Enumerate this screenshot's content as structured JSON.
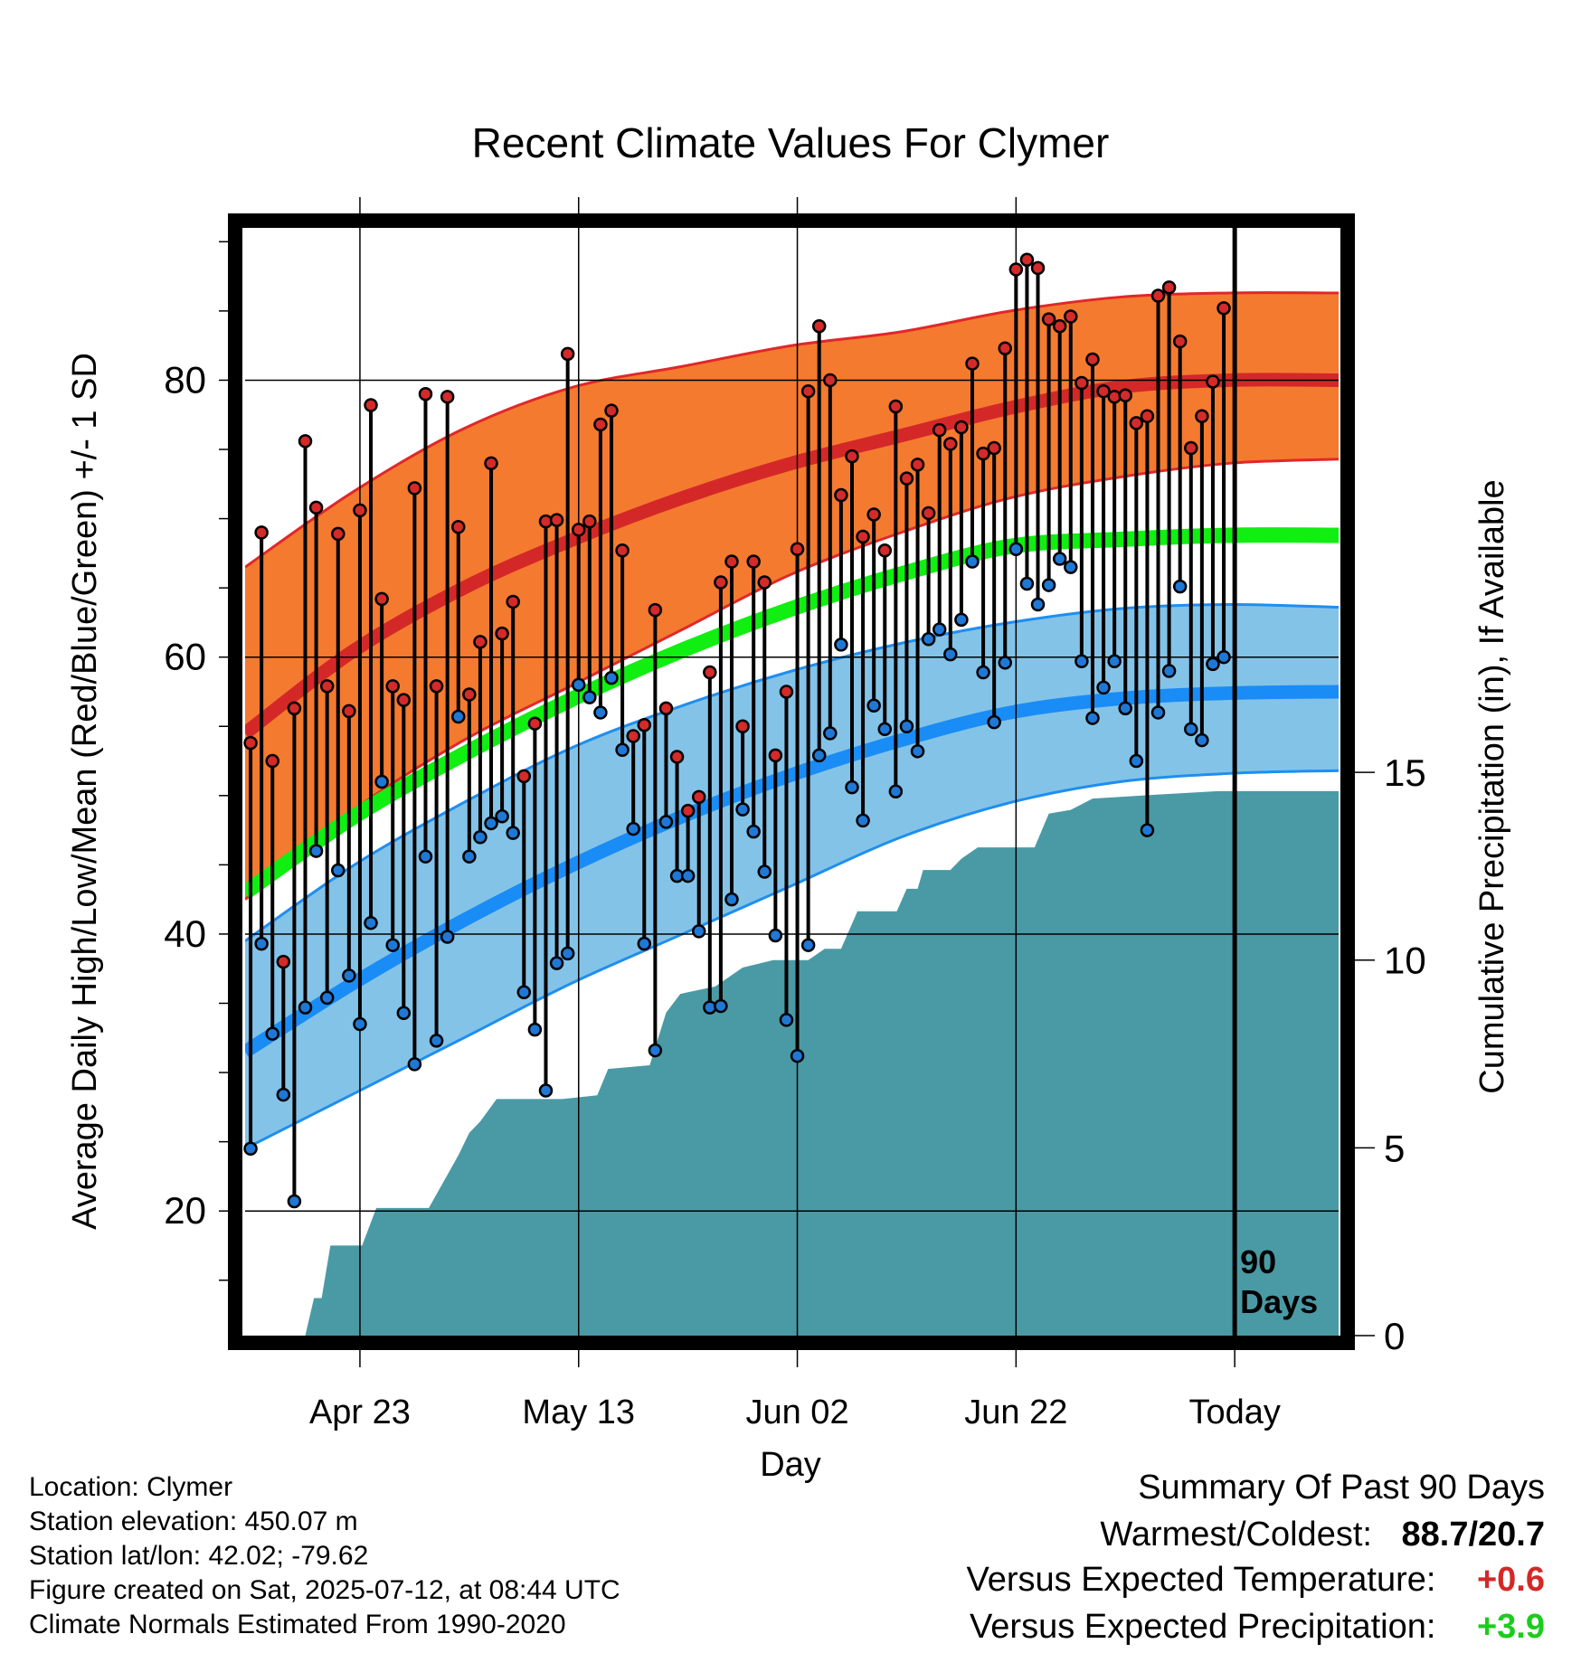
{
  "chart_data": {
    "type": "line",
    "title": "Recent Climate Values For Clymer",
    "xlabel": "Day",
    "ylabel_left": "Average Daily High/Low/Mean (Red/Blue/Green) +/- 1 SD",
    "ylabel_right": "Cumulative Precipitation (in), If Available",
    "ylim": [
      11,
      91
    ],
    "y_ticks": [
      20,
      40,
      60,
      80
    ],
    "precip_ylim": [
      0,
      29.5
    ],
    "precip_ticks": [
      0,
      5,
      10,
      15
    ],
    "x_range": [
      0,
      100
    ],
    "x_ticks": [
      {
        "day": 10.5,
        "label": "Apr 23"
      },
      {
        "day": 30.5,
        "label": "May 13"
      },
      {
        "day": 50.5,
        "label": "Jun 02"
      },
      {
        "day": 70.5,
        "label": "Jun 22"
      },
      {
        "day": 90.5,
        "label": "Today"
      }
    ],
    "today_day": 90.5,
    "today_label": [
      "90",
      "Days"
    ],
    "grid": true,
    "colors": {
      "high_band": "#f47a30",
      "high_edge": "#e0282a",
      "high_mean": "#d42828",
      "low_band": "#84c3e8",
      "low_edge": "#1f8ef0",
      "low_mean": "#1a8cf5",
      "mean": "#11ee11",
      "precip": "#4a9aa5",
      "high_dot": "#d42a2a",
      "low_dot": "#1f78d6"
    },
    "normals": {
      "days": [
        0,
        10,
        20,
        30,
        40,
        50,
        60,
        70,
        80,
        90,
        100
      ],
      "high_mean": [
        54.5,
        60.5,
        65.0,
        68.5,
        71.5,
        74.0,
        76.0,
        78.0,
        79.5,
        80.0,
        80.0
      ],
      "high_upper": [
        66.5,
        72.0,
        76.5,
        79.5,
        81.0,
        82.5,
        83.5,
        85.0,
        86.0,
        86.3,
        86.3
      ],
      "high_lower": [
        42.5,
        49.0,
        54.0,
        58.0,
        62.0,
        66.0,
        69.0,
        71.5,
        73.0,
        74.0,
        74.3
      ],
      "mean": [
        43.0,
        48.5,
        53.0,
        57.0,
        60.5,
        63.5,
        66.0,
        68.0,
        68.5,
        68.8,
        68.8
      ],
      "low_mean": [
        31.5,
        36.5,
        41.0,
        45.0,
        48.5,
        51.5,
        54.0,
        56.0,
        57.0,
        57.4,
        57.5
      ],
      "low_upper": [
        39.5,
        45.0,
        49.5,
        53.5,
        56.5,
        59.0,
        61.0,
        62.5,
        63.5,
        63.8,
        63.6
      ],
      "low_lower": [
        24.5,
        28.5,
        32.5,
        36.5,
        40.0,
        43.5,
        47.0,
        49.5,
        51.0,
        51.6,
        51.8
      ]
    },
    "daily": [
      {
        "day": 0,
        "high": 53.8,
        "low": 24.5
      },
      {
        "day": 1,
        "high": 69.0,
        "low": 39.3
      },
      {
        "day": 2,
        "high": 52.5,
        "low": 32.8
      },
      {
        "day": 3,
        "high": 38.0,
        "low": 28.4
      },
      {
        "day": 4,
        "high": 56.3,
        "low": 20.7
      },
      {
        "day": 5,
        "high": 75.6,
        "low": 34.7
      },
      {
        "day": 6,
        "high": 70.8,
        "low": 46.0
      },
      {
        "day": 7,
        "high": 57.9,
        "low": 35.4
      },
      {
        "day": 8,
        "high": 68.9,
        "low": 44.6
      },
      {
        "day": 9,
        "high": 56.1,
        "low": 37.0
      },
      {
        "day": 10,
        "high": 70.6,
        "low": 33.5
      },
      {
        "day": 11,
        "high": 78.2,
        "low": 40.8
      },
      {
        "day": 12,
        "high": 64.2,
        "low": 51.0
      },
      {
        "day": 13,
        "high": 57.9,
        "low": 39.2
      },
      {
        "day": 14,
        "high": 56.9,
        "low": 34.3
      },
      {
        "day": 15,
        "high": 72.2,
        "low": 30.6
      },
      {
        "day": 16,
        "high": 79.0,
        "low": 45.6
      },
      {
        "day": 17,
        "high": 57.9,
        "low": 32.3
      },
      {
        "day": 18,
        "high": 78.8,
        "low": 39.8
      },
      {
        "day": 19,
        "high": 69.4,
        "low": 55.7
      },
      {
        "day": 20,
        "high": 57.3,
        "low": 45.6
      },
      {
        "day": 21,
        "high": 61.1,
        "low": 47.0
      },
      {
        "day": 22,
        "high": 74.0,
        "low": 48.0
      },
      {
        "day": 23,
        "high": 61.7,
        "low": 48.5
      },
      {
        "day": 24,
        "high": 64.0,
        "low": 47.3
      },
      {
        "day": 25,
        "high": 51.4,
        "low": 35.8
      },
      {
        "day": 26,
        "high": 55.2,
        "low": 33.1
      },
      {
        "day": 27,
        "high": 69.8,
        "low": 28.7
      },
      {
        "day": 28,
        "high": 69.9,
        "low": 37.9
      },
      {
        "day": 29,
        "high": 81.9,
        "low": 38.6
      },
      {
        "day": 30,
        "high": 69.2,
        "low": 58.0
      },
      {
        "day": 31,
        "high": 69.8,
        "low": 57.1
      },
      {
        "day": 32,
        "high": 76.8,
        "low": 56.0
      },
      {
        "day": 33,
        "high": 77.8,
        "low": 58.5
      },
      {
        "day": 34,
        "high": 67.7,
        "low": 53.3
      },
      {
        "day": 35,
        "high": 54.3,
        "low": 47.6
      },
      {
        "day": 36,
        "high": 55.1,
        "low": 39.3
      },
      {
        "day": 37,
        "high": 63.4,
        "low": 31.6
      },
      {
        "day": 38,
        "high": 56.3,
        "low": 48.1
      },
      {
        "day": 39,
        "high": 52.8,
        "low": 44.2
      },
      {
        "day": 40,
        "high": 48.9,
        "low": 44.2
      },
      {
        "day": 41,
        "high": 49.9,
        "low": 40.2
      },
      {
        "day": 42,
        "high": 58.9,
        "low": 34.7
      },
      {
        "day": 43,
        "high": 65.4,
        "low": 34.8
      },
      {
        "day": 44,
        "high": 66.9,
        "low": 42.5
      },
      {
        "day": 45,
        "high": 55.0,
        "low": 49.0
      },
      {
        "day": 46,
        "high": 66.9,
        "low": 47.4
      },
      {
        "day": 47,
        "high": 65.4,
        "low": 44.5
      },
      {
        "day": 48,
        "high": 52.9,
        "low": 39.9
      },
      {
        "day": 49,
        "high": 57.5,
        "low": 33.8
      },
      {
        "day": 50,
        "high": 67.8,
        "low": 31.2
      },
      {
        "day": 51,
        "high": 79.2,
        "low": 39.2
      },
      {
        "day": 52,
        "high": 83.9,
        "low": 52.9
      },
      {
        "day": 53,
        "high": 80.0,
        "low": 54.5
      },
      {
        "day": 54,
        "high": 71.7,
        "low": 60.9
      },
      {
        "day": 55,
        "high": 74.5,
        "low": 50.6
      },
      {
        "day": 56,
        "high": 68.7,
        "low": 48.2
      },
      {
        "day": 57,
        "high": 70.3,
        "low": 56.5
      },
      {
        "day": 58,
        "high": 67.7,
        "low": 54.8
      },
      {
        "day": 59,
        "high": 78.1,
        "low": 50.3
      },
      {
        "day": 60,
        "high": 72.9,
        "low": 55.0
      },
      {
        "day": 61,
        "high": 73.9,
        "low": 53.2
      },
      {
        "day": 62,
        "high": 70.4,
        "low": 61.3
      },
      {
        "day": 63,
        "high": 76.4,
        "low": 62.0
      },
      {
        "day": 64,
        "high": 75.4,
        "low": 60.2
      },
      {
        "day": 65,
        "high": 76.6,
        "low": 62.7
      },
      {
        "day": 66,
        "high": 81.2,
        "low": 66.9
      },
      {
        "day": 67,
        "high": 74.7,
        "low": 58.9
      },
      {
        "day": 68,
        "high": 75.1,
        "low": 55.3
      },
      {
        "day": 69,
        "high": 82.3,
        "low": 59.6
      },
      {
        "day": 70,
        "high": 88.0,
        "low": 67.8
      },
      {
        "day": 71,
        "high": 88.7,
        "low": 65.3
      },
      {
        "day": 72,
        "high": 88.1,
        "low": 63.8
      },
      {
        "day": 73,
        "high": 84.4,
        "low": 65.2
      },
      {
        "day": 74,
        "high": 83.9,
        "low": 67.1
      },
      {
        "day": 75,
        "high": 84.6,
        "low": 66.5
      },
      {
        "day": 76,
        "high": 79.8,
        "low": 59.7
      },
      {
        "day": 77,
        "high": 81.5,
        "low": 55.6
      },
      {
        "day": 78,
        "high": 79.2,
        "low": 57.8
      },
      {
        "day": 79,
        "high": 78.8,
        "low": 59.7
      },
      {
        "day": 80,
        "high": 78.9,
        "low": 56.3
      },
      {
        "day": 81,
        "high": 76.9,
        "low": 52.5
      },
      {
        "day": 82,
        "high": 77.4,
        "low": 47.5
      },
      {
        "day": 83,
        "high": 86.1,
        "low": 56.0
      },
      {
        "day": 84,
        "high": 86.7,
        "low": 59.0
      },
      {
        "day": 85,
        "high": 82.8,
        "low": 65.1
      },
      {
        "day": 86,
        "high": 75.1,
        "low": 54.8
      },
      {
        "day": 87,
        "high": 77.4,
        "low": 54.0
      },
      {
        "day": 88,
        "high": 79.9,
        "low": 59.5
      },
      {
        "day": 89,
        "high": 85.2,
        "low": 60.0
      }
    ],
    "precip": [
      {
        "day": 0,
        "in": 0
      },
      {
        "day": 5.5,
        "in": 0
      },
      {
        "day": 6.3,
        "in": 1.0
      },
      {
        "day": 7.0,
        "in": 1.0
      },
      {
        "day": 7.8,
        "in": 2.4
      },
      {
        "day": 10.7,
        "in": 2.4
      },
      {
        "day": 12.0,
        "in": 3.4
      },
      {
        "day": 16.8,
        "in": 3.4
      },
      {
        "day": 19.5,
        "in": 4.8
      },
      {
        "day": 20.5,
        "in": 5.4
      },
      {
        "day": 21.5,
        "in": 5.7
      },
      {
        "day": 23.0,
        "in": 6.3
      },
      {
        "day": 29.0,
        "in": 6.3
      },
      {
        "day": 32.2,
        "in": 6.4
      },
      {
        "day": 33.2,
        "in": 7.1
      },
      {
        "day": 37.0,
        "in": 7.2
      },
      {
        "day": 38.5,
        "in": 8.6
      },
      {
        "day": 39.8,
        "in": 9.1
      },
      {
        "day": 43.0,
        "in": 9.3
      },
      {
        "day": 45.5,
        "in": 9.8
      },
      {
        "day": 48.3,
        "in": 10.0
      },
      {
        "day": 51.5,
        "in": 10.0
      },
      {
        "day": 53.0,
        "in": 10.3
      },
      {
        "day": 54.5,
        "in": 10.3
      },
      {
        "day": 56.0,
        "in": 11.3
      },
      {
        "day": 59.6,
        "in": 11.3
      },
      {
        "day": 60.5,
        "in": 11.9
      },
      {
        "day": 61.5,
        "in": 11.9
      },
      {
        "day": 62.0,
        "in": 12.4
      },
      {
        "day": 64.5,
        "in": 12.4
      },
      {
        "day": 65.5,
        "in": 12.7
      },
      {
        "day": 67.0,
        "in": 13.0
      },
      {
        "day": 72.2,
        "in": 13.0
      },
      {
        "day": 73.5,
        "in": 13.9
      },
      {
        "day": 75.5,
        "in": 14.0
      },
      {
        "day": 77.5,
        "in": 14.3
      },
      {
        "day": 83.0,
        "in": 14.4
      },
      {
        "day": 89.0,
        "in": 14.5
      },
      {
        "day": 100,
        "in": 14.5
      }
    ]
  },
  "info": {
    "location": "Location: Clymer",
    "elevation": "Station elevation: 450.07 m",
    "latlon": "Station lat/lon: 42.02; -79.62",
    "created": "Figure created on Sat, 2025-07-12, at 08:44 UTC",
    "normals": "Climate Normals Estimated From 1990-2020"
  },
  "summary": {
    "title": "Summary Of Past 90 Days",
    "warm_cold_label": "Warmest/Coldest:",
    "warm_cold_value": "88.7/20.7",
    "temp_label": "Versus Expected Temperature:",
    "temp_value": "+0.6",
    "temp_color": "#d42828",
    "precip_label": "Versus Expected Precipitation:",
    "precip_value": "+3.9",
    "precip_color": "#1ccc1c"
  }
}
